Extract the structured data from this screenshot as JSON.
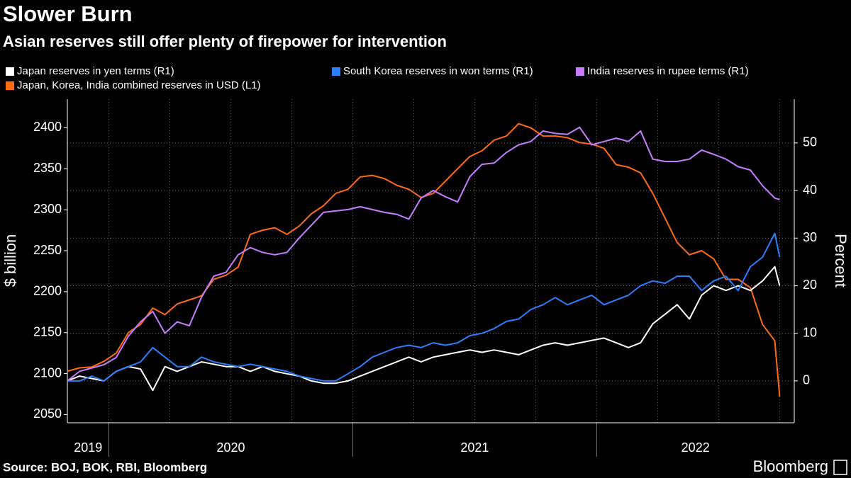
{
  "chart_data": {
    "type": "line",
    "title": "Slower Burn",
    "subtitle": "Asian reserves still offer plenty of firepower for intervention",
    "ylabel": "$ billion",
    "y2label": "Percent",
    "source": "Source: BOJ, BOK, RBI, Bloomberg",
    "logo": "Bloomberg",
    "x": [
      2019.83,
      2019.88,
      2019.93,
      2019.98,
      2020.03,
      2020.08,
      2020.13,
      2020.18,
      2020.23,
      2020.28,
      2020.33,
      2020.38,
      2020.43,
      2020.48,
      2020.53,
      2020.58,
      2020.63,
      2020.68,
      2020.73,
      2020.78,
      2020.83,
      2020.88,
      2020.93,
      2020.98,
      2021.03,
      2021.08,
      2021.13,
      2021.18,
      2021.23,
      2021.28,
      2021.33,
      2021.38,
      2021.43,
      2021.48,
      2021.53,
      2021.58,
      2021.63,
      2021.68,
      2021.73,
      2021.78,
      2021.83,
      2021.88,
      2021.93,
      2021.98,
      2022.03,
      2022.08,
      2022.13,
      2022.18,
      2022.23,
      2022.28,
      2022.33,
      2022.38,
      2022.43,
      2022.48,
      2022.53,
      2022.58,
      2022.63,
      2022.68,
      2022.73,
      2022.75
    ],
    "xlim": [
      2019.83,
      2022.81
    ],
    "xticks": [
      2019,
      2020,
      2021,
      2022
    ],
    "xgrid": [
      2020,
      2020.25,
      2020.5,
      2020.75,
      2021,
      2021.25,
      2021.5,
      2021.75,
      2022,
      2022.25,
      2022.5,
      2022.75
    ],
    "ylim": [
      2040,
      2435
    ],
    "yticks": [
      2050,
      2100,
      2150,
      2200,
      2250,
      2300,
      2350,
      2400
    ],
    "y2lim": [
      -8.8,
      59.2
    ],
    "y2ticks": [
      0,
      10,
      20,
      30,
      40,
      50
    ],
    "grid": "y2",
    "series": [
      {
        "name": "Japan reserves in yen terms (R1)",
        "color": "#ffffff",
        "axis": "y2",
        "values": [
          0,
          1,
          0.5,
          0,
          2,
          3,
          2.5,
          -2,
          3,
          2,
          3,
          4,
          3.5,
          3,
          3,
          2,
          3,
          2,
          1.5,
          1,
          0,
          -0.5,
          -0.5,
          0,
          1,
          2,
          3,
          4,
          5,
          4,
          5,
          5.5,
          6,
          6.5,
          6,
          6.5,
          6,
          5.5,
          6.5,
          7.5,
          8,
          7.5,
          8,
          8.5,
          9,
          8,
          7,
          8,
          12,
          14,
          16,
          13,
          18,
          20,
          19,
          20,
          19,
          21,
          24,
          20
        ]
      },
      {
        "name": "South Korea reserves in won terms (R1)",
        "color": "#2a7fff",
        "axis": "y2",
        "values": [
          0,
          0,
          1,
          0,
          2,
          3,
          4,
          7,
          5,
          3,
          3,
          5,
          4,
          3.5,
          3,
          3.5,
          3,
          2.5,
          2,
          1,
          0.5,
          0,
          0,
          1.5,
          3,
          5,
          6,
          7,
          7.5,
          7,
          8,
          7.5,
          8,
          9.5,
          10,
          11,
          12.5,
          13,
          15,
          16,
          17.5,
          16,
          17,
          18,
          16,
          17,
          18,
          20,
          21,
          20.5,
          22,
          22,
          19,
          21,
          22,
          19,
          24,
          26,
          31,
          26
        ]
      },
      {
        "name": "India reserves in rupee terms (R1)",
        "color": "#c77dff",
        "axis": "y2",
        "values": [
          0,
          2,
          2.7,
          3.4,
          4.9,
          9.4,
          12.4,
          14.6,
          10,
          12.4,
          11.6,
          17.6,
          22,
          22.8,
          26.5,
          28,
          27,
          26.5,
          27,
          30,
          32.7,
          35.4,
          35.7,
          36,
          36.6,
          36,
          35.4,
          35,
          34,
          38.4,
          40,
          38.7,
          37.6,
          42.9,
          45.5,
          45.8,
          48,
          49.6,
          50.3,
          52.5,
          52,
          51.8,
          53.3,
          49.6,
          50.3,
          51,
          50.3,
          52.5,
          46.6,
          46.1,
          46.1,
          46.6,
          48.5,
          47.6,
          46.6,
          45,
          44.3,
          41,
          38.4,
          38.1
        ]
      },
      {
        "name": "Japan, Korea, India combined reserves in USD (L1)",
        "color": "#ff6a13",
        "values": [
          2103,
          2107,
          2108,
          2115,
          2125,
          2150,
          2160,
          2180,
          2172,
          2185,
          2190,
          2195,
          2215,
          2220,
          2230,
          2270,
          2275,
          2278,
          2270,
          2280,
          2295,
          2305,
          2320,
          2325,
          2340,
          2342,
          2338,
          2330,
          2325,
          2315,
          2320,
          2335,
          2350,
          2365,
          2372,
          2385,
          2390,
          2405,
          2400,
          2390,
          2390,
          2388,
          2382,
          2380,
          2375,
          2355,
          2352,
          2345,
          2320,
          2290,
          2260,
          2245,
          2250,
          2240,
          2215,
          2215,
          2205,
          2160,
          2140,
          2072
        ]
      }
    ]
  }
}
